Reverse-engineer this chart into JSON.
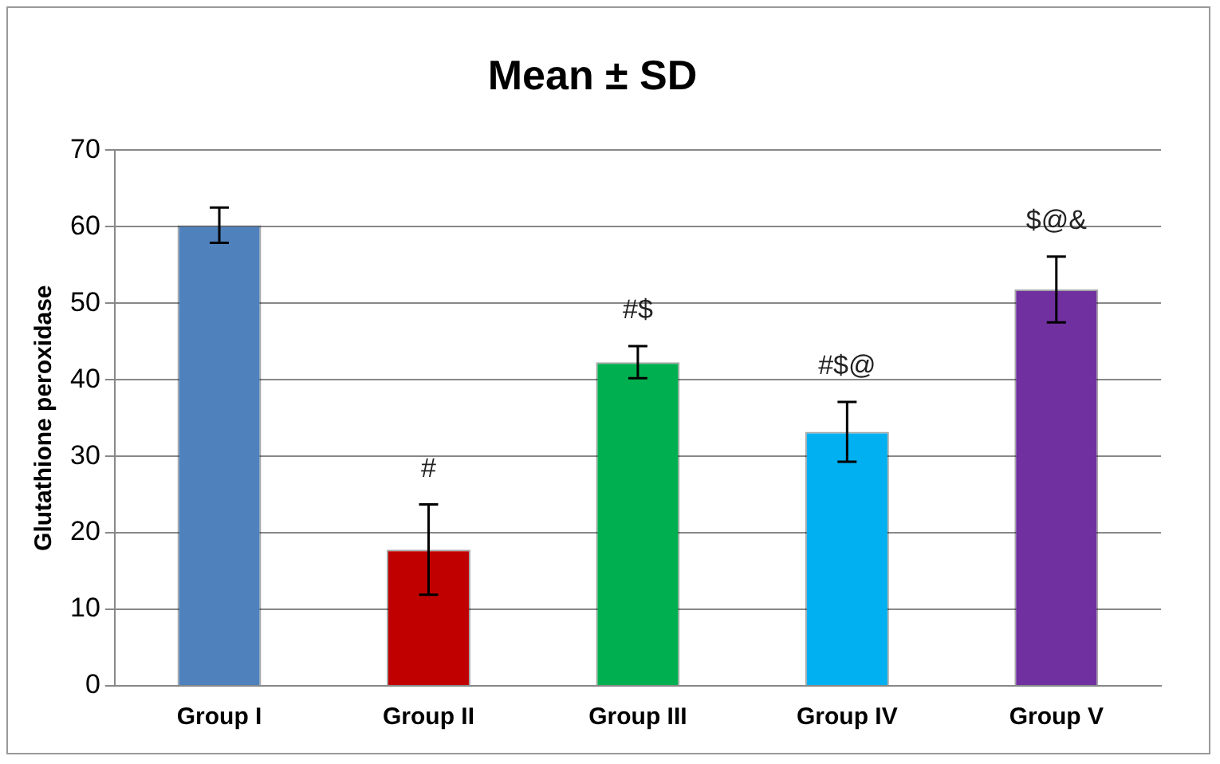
{
  "chart_data": {
    "type": "bar",
    "title": "Mean ± SD",
    "ylabel": "Glutathione peroxidase",
    "categories": [
      "Group I",
      "Group II",
      "Group III",
      "Group IV",
      "Group V"
    ],
    "values": [
      60.2,
      17.8,
      42.3,
      33.2,
      51.8
    ],
    "errors": [
      2.3,
      5.9,
      2.1,
      3.9,
      4.3
    ],
    "colors": [
      "#4f81bd",
      "#c00000",
      "#00b050",
      "#00b0f0",
      "#7030a0"
    ],
    "ylim": [
      0,
      70
    ],
    "yticks": [
      0,
      10,
      20,
      30,
      40,
      50,
      60,
      70
    ],
    "grid": "y",
    "legend": false,
    "annotations": [
      "#",
      "#$",
      "#$@",
      "$@&"
    ]
  }
}
